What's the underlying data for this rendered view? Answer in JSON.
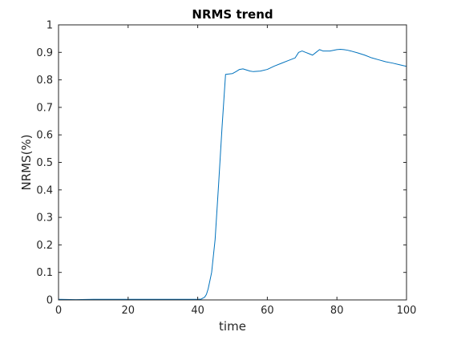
{
  "chart_data": {
    "type": "line",
    "title": "NRMS trend",
    "xlabel": "time",
    "ylabel": "NRMS(%)",
    "xlim": [
      0,
      100
    ],
    "ylim": [
      0,
      1
    ],
    "xticks": [
      0,
      20,
      40,
      60,
      80,
      100
    ],
    "xtick_labels": [
      "0",
      "20",
      "40",
      "60",
      "80",
      "100"
    ],
    "yticks": [
      0,
      0.1,
      0.2,
      0.3,
      0.4,
      0.5,
      0.6,
      0.7,
      0.8,
      0.9,
      1
    ],
    "ytick_labels": [
      "0",
      "0.1",
      "0.2",
      "0.3",
      "0.4",
      "0.5",
      "0.6",
      "0.7",
      "0.8",
      "0.9",
      "1"
    ],
    "grid": false,
    "legend": false,
    "line_color": "#0072BD",
    "series": [
      {
        "x": [
          0,
          5,
          10,
          20,
          30,
          40,
          41,
          42,
          42.5,
          43,
          43.5,
          44,
          45,
          46,
          47,
          48,
          50,
          51,
          52,
          53,
          54,
          55,
          56,
          58,
          60,
          62,
          64,
          66,
          68,
          69,
          70,
          71,
          72,
          73,
          74,
          75,
          76,
          78,
          80,
          81,
          82,
          83,
          84,
          86,
          88,
          90,
          92,
          94,
          96,
          98,
          100
        ],
        "y": [
          0.002,
          0.001,
          0.002,
          0.002,
          0.002,
          0.002,
          0.003,
          0.01,
          0.02,
          0.04,
          0.07,
          0.1,
          0.22,
          0.42,
          0.63,
          0.82,
          0.823,
          0.83,
          0.838,
          0.84,
          0.836,
          0.832,
          0.83,
          0.832,
          0.838,
          0.85,
          0.86,
          0.87,
          0.88,
          0.9,
          0.905,
          0.9,
          0.895,
          0.89,
          0.9,
          0.91,
          0.905,
          0.905,
          0.91,
          0.911,
          0.91,
          0.908,
          0.905,
          0.898,
          0.89,
          0.88,
          0.873,
          0.866,
          0.861,
          0.855,
          0.849
        ]
      }
    ]
  }
}
